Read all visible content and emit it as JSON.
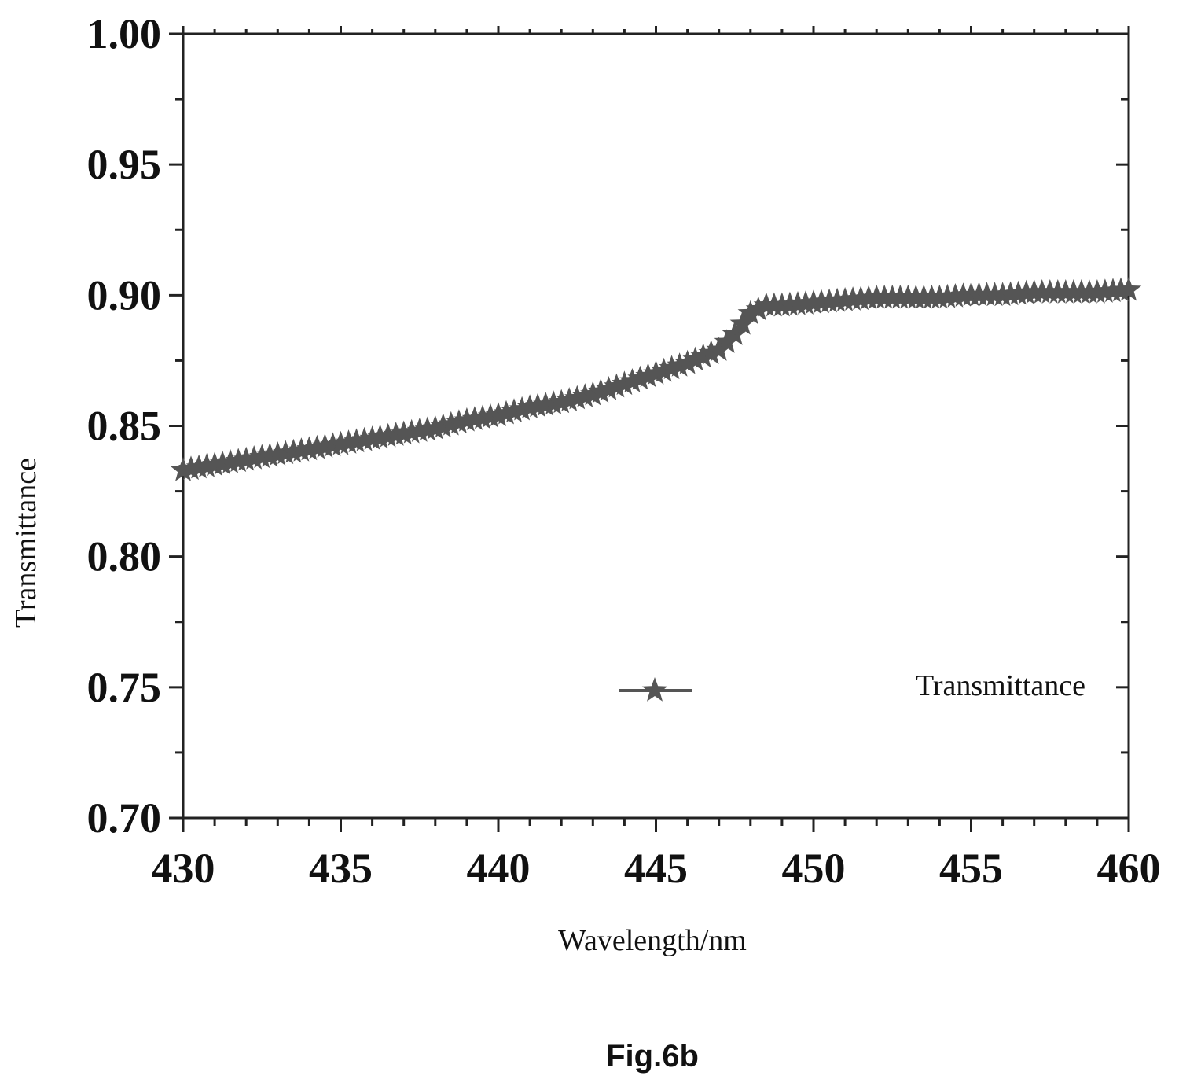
{
  "chart_data": {
    "type": "line",
    "xlabel": "Wavelength/nm",
    "ylabel": "Transmittance",
    "xlim": [
      430,
      460
    ],
    "ylim": [
      0.7,
      1.0
    ],
    "x_ticks": [
      "430",
      "435",
      "440",
      "445",
      "450",
      "455",
      "460"
    ],
    "y_ticks": [
      "0.70",
      "0.75",
      "0.80",
      "0.85",
      "0.90",
      "0.95",
      "1.00"
    ],
    "grid": false,
    "legend_position": "bottom-right",
    "marker": "star",
    "series_color": "#555555",
    "series": [
      {
        "name": "Transmittance",
        "points": [
          [
            430,
            0.833
          ],
          [
            431,
            0.835
          ],
          [
            432,
            0.837
          ],
          [
            433,
            0.839
          ],
          [
            434,
            0.841
          ],
          [
            435,
            0.843
          ],
          [
            436,
            0.845
          ],
          [
            437,
            0.847
          ],
          [
            438,
            0.849
          ],
          [
            439,
            0.852
          ],
          [
            440,
            0.854
          ],
          [
            441,
            0.857
          ],
          [
            442,
            0.859
          ],
          [
            443,
            0.862
          ],
          [
            444,
            0.866
          ],
          [
            445,
            0.87
          ],
          [
            446,
            0.874
          ],
          [
            447,
            0.879
          ],
          [
            447.5,
            0.885
          ],
          [
            448,
            0.893
          ],
          [
            448.5,
            0.896
          ],
          [
            449,
            0.896
          ],
          [
            450,
            0.897
          ],
          [
            451,
            0.898
          ],
          [
            452,
            0.899
          ],
          [
            453,
            0.899
          ],
          [
            454,
            0.899
          ],
          [
            455,
            0.9
          ],
          [
            456,
            0.9
          ],
          [
            457,
            0.901
          ],
          [
            458,
            0.901
          ],
          [
            459,
            0.901
          ],
          [
            460,
            0.902
          ]
        ]
      }
    ]
  },
  "caption": "Fig.6b"
}
